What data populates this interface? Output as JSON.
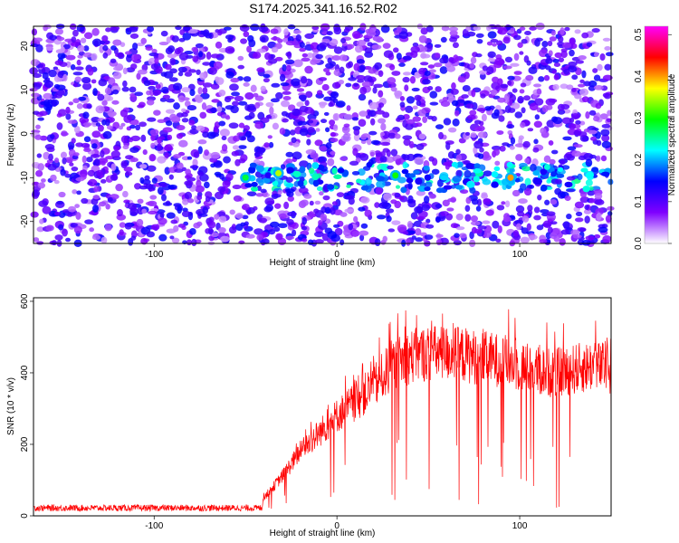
{
  "title": "S174.2025.341.16.52.R02",
  "chart_data": [
    {
      "type": "heatmap",
      "xlabel": "Height of straight line (km)",
      "ylabel": "Frequency (Hz)",
      "xlim": [
        -166,
        150
      ],
      "ylim": [
        -25,
        24.5
      ],
      "x_ticks": [
        -100,
        0,
        100
      ],
      "y_ticks": [
        -20,
        -10,
        0,
        10,
        20
      ],
      "colorbar": {
        "label": "Normalized spectral amplitude",
        "range": [
          0,
          0.52
        ],
        "ticks": [
          0.0,
          0.1,
          0.2,
          0.3,
          0.4,
          0.5
        ],
        "tick_labels": [
          "0.0",
          "0.1",
          "0.2",
          "0.3",
          "0.4",
          "0.5"
        ],
        "colormap": [
          "#ffffff",
          "#7f00ff",
          "#0000ff",
          "#00ffff",
          "#00ff00",
          "#ffff00",
          "#ff0000",
          "#ff00ff"
        ]
      },
      "signal_band": {
        "x_start": -50,
        "x_end": 150,
        "frequency": -10,
        "width": 3
      },
      "hotspots": [
        {
          "x": -50,
          "y": -10,
          "value": 0.28
        },
        {
          "x": -32,
          "y": -9,
          "value": 0.35
        },
        {
          "x": 32,
          "y": -9.5,
          "value": 0.3
        },
        {
          "x": 95,
          "y": -10,
          "value": 0.4
        }
      ]
    },
    {
      "type": "line",
      "xlabel": "Height of straight line (km)",
      "ylabel": "SNR (10 * v/v)",
      "xlim": [
        -166,
        150
      ],
      "ylim": [
        0,
        610
      ],
      "x_ticks": [
        -100,
        0,
        100
      ],
      "y_ticks": [
        0,
        200,
        400,
        600
      ],
      "color": "#ff0000",
      "profile": {
        "x": [
          -166,
          -41,
          -40,
          -30,
          -20,
          -10,
          0,
          10,
          20,
          30,
          40,
          50,
          60,
          70,
          80,
          90,
          100,
          110,
          120,
          130,
          140,
          150
        ],
        "y": [
          22,
          22,
          50,
          110,
          180,
          230,
          280,
          320,
          360,
          420,
          445,
          455,
          455,
          450,
          440,
          435,
          420,
          405,
          400,
          410,
          420,
          410
        ]
      }
    }
  ]
}
